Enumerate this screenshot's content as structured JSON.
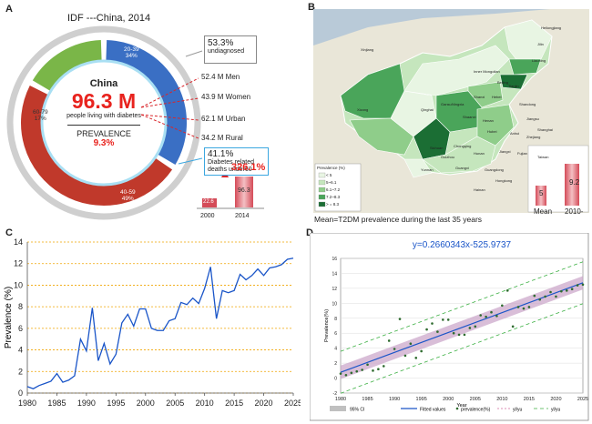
{
  "panelA": {
    "letter": "A",
    "title": "IDF ---China, 2014",
    "country": "China",
    "total": "96.3 M",
    "total_caption": "people living with diabetes",
    "prevalence_label": "PREVALENCE",
    "prevalence_value": "9.3%",
    "undiagnosed_pct": "53.3%",
    "undiagnosed_label": "undiagnosed",
    "men": "52.4 M Men",
    "women": "43.9 M Women",
    "urban": "62.1 M Urban",
    "rural": "34.2 M Rural",
    "deaths_pct": "41.1%",
    "deaths_line1": "Diabetes related",
    "deaths_line2": "deaths under60",
    "growth_pct": "326.1%",
    "bar_2000_value": "22.6",
    "bar_2014_value": "96.3",
    "bar_2000_label": "2000",
    "bar_2014_label": "2014",
    "segments": [
      {
        "label": "20-39",
        "pct": "34%",
        "color": "#3a6fc4"
      },
      {
        "label": "40-59",
        "pct": "49%",
        "color": "#c0392b"
      },
      {
        "label": "60-79",
        "pct": "17%",
        "color": "#7ab648"
      }
    ],
    "donut_values": [
      34,
      49,
      17
    ]
  },
  "panelB": {
    "letter": "B",
    "caption": "Mean=T2DM prevalence during  the last  35 years",
    "legend_title": "Prevalence (%)",
    "legend_items": [
      "< 5",
      "5~6.1",
      "6.1~7.2",
      "7.2~8.3",
      "> = 8.3"
    ],
    "legend_colors": [
      "#e8f5e3",
      "#c5e6bd",
      "#8fcd8a",
      "#4aa55a",
      "#1b6e34"
    ],
    "mean_value": "5",
    "mean_label": "Mean",
    "recent_value": "9.2",
    "recent_label": "2010-",
    "provinces": [
      "Heilongjiang",
      "Jilin",
      "Liaoning",
      "Inner Mongolian",
      "Beijing",
      "Tianjin",
      "Hebei",
      "Shanxi",
      "Shandong",
      "Ningxia",
      "Shaanxi",
      "Henan",
      "Jiangsu",
      "Shanghai",
      "Qinghai",
      "Gansu",
      "Hubei",
      "Anhui",
      "Zhejiang",
      "Sichuan",
      "Chongqing",
      "Hunan",
      "Jiangxi",
      "Fujian",
      "Xizang",
      "Guizhou",
      "Yunnan",
      "Guangxi",
      "Guangdong",
      "Taiwan",
      "Hongkong",
      "Hainan",
      "Xinjiang"
    ]
  },
  "chart_data": [
    {
      "type": "line",
      "panel": "C",
      "title": "",
      "xlabel": "",
      "ylabel": "Prevalence (%)",
      "xlim": [
        1980,
        2025
      ],
      "ylim": [
        0,
        14
      ],
      "xticks": [
        1980,
        1985,
        1990,
        1995,
        2000,
        2005,
        2010,
        2015,
        2020,
        2025
      ],
      "yticks": [
        0,
        2,
        4,
        6,
        8,
        10,
        12,
        14
      ],
      "grid": "horizontal dotted",
      "series": [
        {
          "color": "#1a55c8",
          "x": [
            1980,
            1981,
            1982,
            1983,
            1984,
            1985,
            1986,
            1987,
            1988,
            1989,
            1990,
            1991,
            1992,
            1993,
            1994,
            1995,
            1996,
            1997,
            1998,
            1999,
            2000,
            2001,
            2002,
            2003,
            2004,
            2005,
            2006,
            2007,
            2008,
            2009,
            2010,
            2011,
            2012,
            2013,
            2014,
            2015,
            2016,
            2017,
            2018,
            2019,
            2020,
            2021,
            2022,
            2023,
            2024,
            2025
          ],
          "y": [
            0.6,
            0.4,
            0.7,
            0.9,
            1.1,
            1.8,
            1.0,
            1.2,
            1.6,
            5.0,
            3.9,
            7.9,
            3.0,
            4.6,
            2.7,
            3.6,
            6.5,
            7.3,
            6.2,
            7.8,
            7.8,
            6.0,
            5.8,
            5.8,
            6.7,
            6.9,
            8.4,
            8.2,
            8.8,
            8.3,
            9.7,
            11.7,
            6.9,
            9.5,
            9.3,
            9.5,
            11.0,
            10.5,
            10.9,
            11.5,
            10.9,
            11.6,
            11.7,
            11.9,
            12.4,
            12.5
          ]
        }
      ]
    },
    {
      "type": "scatter",
      "panel": "D",
      "title": "y=0.2660343x-525.9737",
      "xlabel": "Year",
      "ylabel": "Prevalence(%)",
      "xlim": [
        1980,
        2025
      ],
      "ylim": [
        -2,
        16
      ],
      "xticks": [
        1980,
        1985,
        1990,
        1995,
        2000,
        2005,
        2010,
        2015,
        2020,
        2025
      ],
      "yticks": [
        -2,
        0,
        2,
        4,
        6,
        8,
        10,
        12,
        14,
        16
      ],
      "fit": {
        "slope": 0.2660343,
        "intercept": -525.9737
      },
      "legend": [
        "95% CI",
        "Fitted values",
        "prevalence(%)",
        "yl/yu",
        "yl/yu"
      ],
      "legend_placement": "bottom",
      "points_x": [
        1980,
        1981,
        1982,
        1983,
        1984,
        1985,
        1986,
        1987,
        1988,
        1989,
        1990,
        1991,
        1992,
        1993,
        1994,
        1995,
        1996,
        1997,
        1998,
        1999,
        2000,
        2001,
        2002,
        2003,
        2004,
        2005,
        2006,
        2007,
        2008,
        2009,
        2010,
        2011,
        2012,
        2013,
        2014,
        2015,
        2016,
        2017,
        2018,
        2019,
        2020,
        2021,
        2022,
        2023,
        2024,
        2025
      ],
      "points_y": [
        0.6,
        0.4,
        0.7,
        0.9,
        1.1,
        1.8,
        1.0,
        1.2,
        1.6,
        5.0,
        3.9,
        7.9,
        3.0,
        4.6,
        2.7,
        3.6,
        6.5,
        7.3,
        6.2,
        7.8,
        7.8,
        6.0,
        5.8,
        5.8,
        6.7,
        6.9,
        8.4,
        8.2,
        8.8,
        8.3,
        9.7,
        11.7,
        6.9,
        9.5,
        9.3,
        9.5,
        11.0,
        10.5,
        10.9,
        11.5,
        10.9,
        11.6,
        11.7,
        11.9,
        12.4,
        12.5
      ]
    }
  ],
  "panelC": {
    "letter": "C"
  },
  "panelD": {
    "letter": "D"
  }
}
